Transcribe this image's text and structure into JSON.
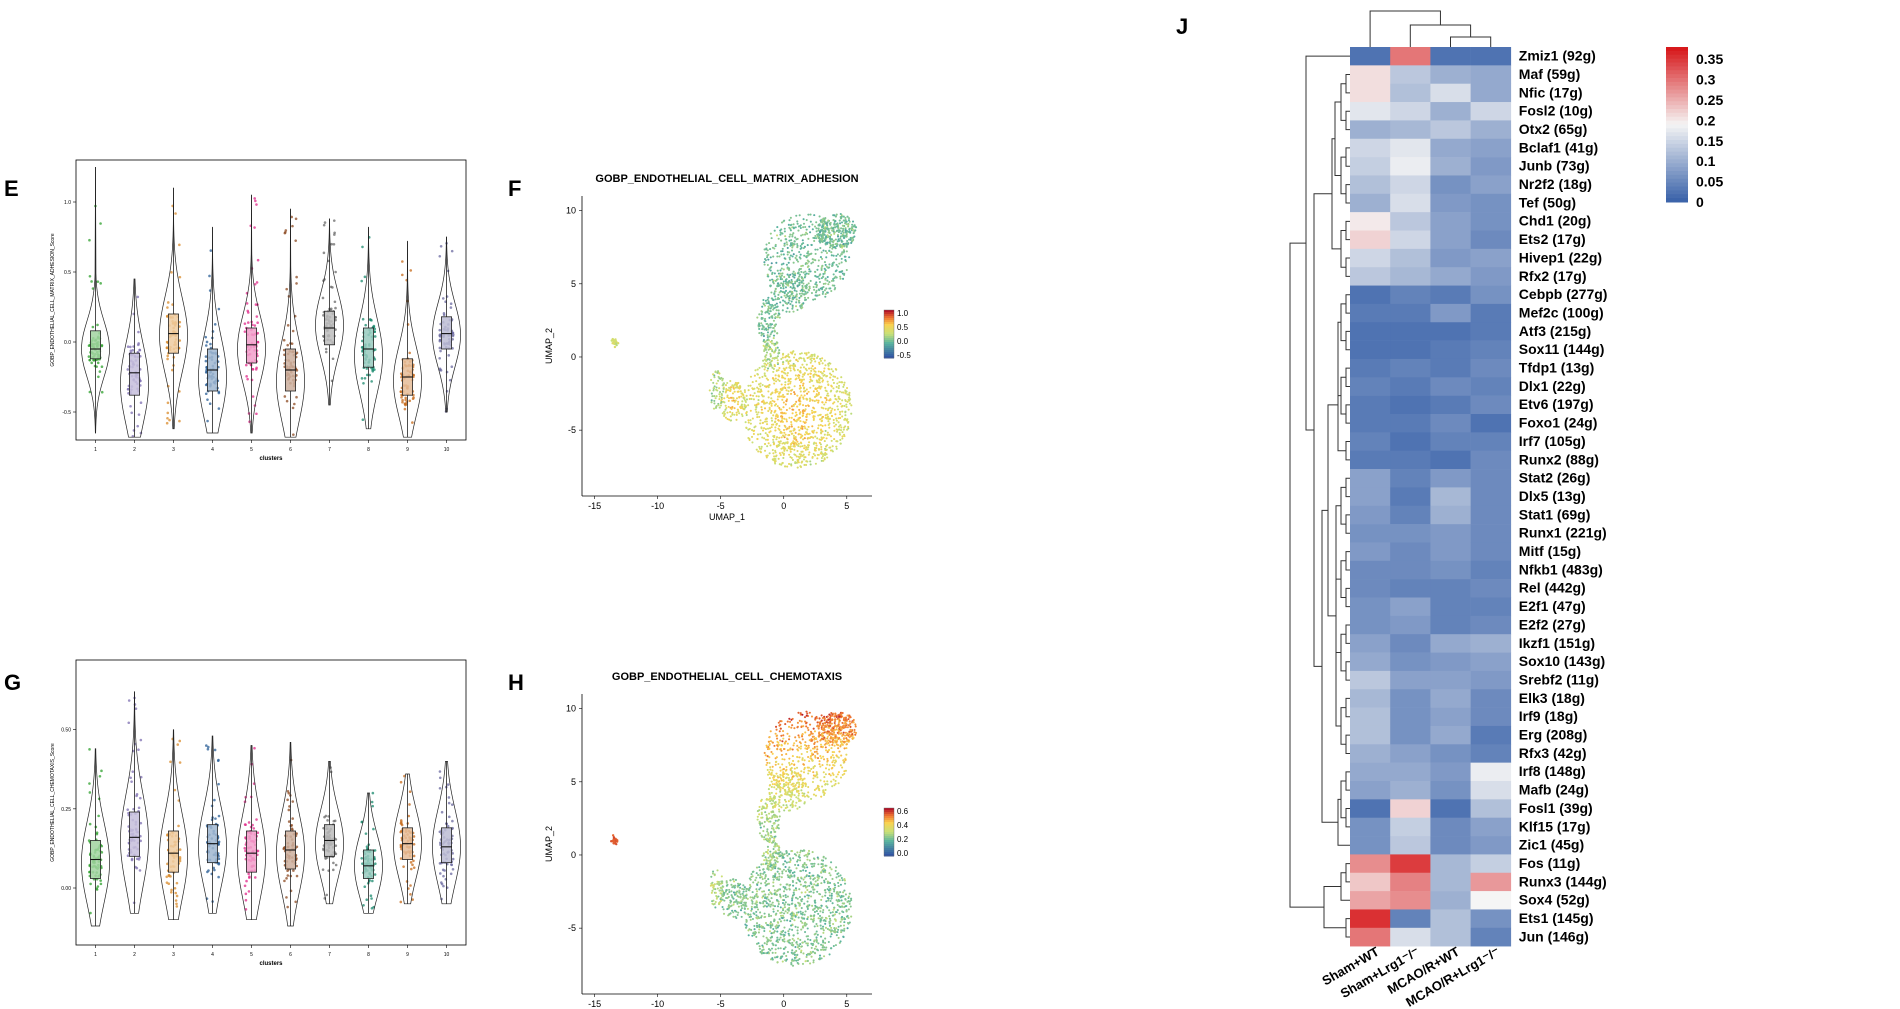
{
  "panel_labels": {
    "E": "E",
    "F": "F",
    "G": "G",
    "H": "H",
    "J": "J"
  },
  "colors": {
    "violins": [
      "#2ea02c",
      "#7d6fb2",
      "#d98b2b",
      "#2a5d96",
      "#e0298a",
      "#8c4a22",
      "#6a6a6a",
      "#1a8a6e",
      "#c56a1a",
      "#6b6aa0"
    ],
    "heat_low": "#3c64aa",
    "heat_mid": "#f5f5f5",
    "heat_high": "#d7191c"
  },
  "chart_data": [
    {
      "id": "E",
      "type": "violin",
      "ylabel": "GOBP_ENDOTHELIAL_CELL_MATRIX_ADHESION_Score",
      "xlabel": "clusters",
      "categories": [
        "1",
        "2",
        "3",
        "4",
        "5",
        "6",
        "7",
        "8",
        "9",
        "10"
      ],
      "ylim": [
        -0.7,
        1.3
      ],
      "yticks": [
        {
          "v": 1.0,
          "t": "1.0"
        },
        {
          "v": 0.5,
          "t": "0.5"
        },
        {
          "v": 0.0,
          "t": "0.0"
        },
        {
          "v": -0.5,
          "t": "-0.5"
        }
      ],
      "series": [
        {
          "min": -0.65,
          "max": 1.25,
          "q1": -0.12,
          "med": -0.05,
          "q3": 0.08,
          "mode": -0.05
        },
        {
          "min": -0.68,
          "max": 0.45,
          "q1": -0.38,
          "med": -0.22,
          "q3": -0.08,
          "mode": -0.3
        },
        {
          "min": -0.62,
          "max": 1.1,
          "q1": -0.08,
          "med": 0.06,
          "q3": 0.2,
          "mode": 0.05
        },
        {
          "min": -0.65,
          "max": 0.82,
          "q1": -0.35,
          "med": -0.2,
          "q3": -0.05,
          "mode": -0.25
        },
        {
          "min": -0.65,
          "max": 1.05,
          "q1": -0.15,
          "med": -0.02,
          "q3": 0.1,
          "mode": -0.05
        },
        {
          "min": -0.68,
          "max": 0.95,
          "q1": -0.35,
          "med": -0.2,
          "q3": -0.05,
          "mode": -0.28
        },
        {
          "min": -0.45,
          "max": 0.88,
          "q1": -0.02,
          "med": 0.1,
          "q3": 0.22,
          "mode": 0.12
        },
        {
          "min": -0.62,
          "max": 0.82,
          "q1": -0.18,
          "med": -0.05,
          "q3": 0.1,
          "mode": -0.1
        },
        {
          "min": -0.68,
          "max": 0.72,
          "q1": -0.38,
          "med": -0.25,
          "q3": -0.12,
          "mode": -0.28
        },
        {
          "min": -0.5,
          "max": 0.75,
          "q1": -0.05,
          "med": 0.06,
          "q3": 0.18,
          "mode": 0.05
        }
      ]
    },
    {
      "id": "F",
      "type": "scatter",
      "title": "GOBP_ENDOTHELIAL_CELL_MATRIX_ADHESION",
      "xlabel": "UMAP_1",
      "ylabel": "UMAP_2",
      "xlim": [
        -16,
        7
      ],
      "ylim": [
        -9.5,
        11
      ],
      "xticks": [
        -15,
        -10,
        -5,
        0,
        5
      ],
      "yticks": [
        10,
        5,
        0,
        -5
      ],
      "legend": {
        "ticks": [
          "1.0",
          "0.5",
          "0.0",
          "-0.5"
        ],
        "range": [
          -0.7,
          1.2
        ]
      },
      "hot_region": "lower"
    },
    {
      "id": "G",
      "type": "violin",
      "ylabel": "GOBP_ENDOTHELIAL_CELL_CHEMOTAXIS_Score",
      "xlabel": "clusters",
      "categories": [
        "1",
        "2",
        "3",
        "4",
        "5",
        "6",
        "7",
        "8",
        "9",
        "10"
      ],
      "ylim": [
        -0.18,
        0.72
      ],
      "yticks": [
        {
          "v": 0.5,
          "t": "0.50"
        },
        {
          "v": 0.25,
          "t": "0.25"
        },
        {
          "v": 0.0,
          "t": "0.00"
        }
      ],
      "series": [
        {
          "min": -0.12,
          "max": 0.44,
          "q1": 0.03,
          "med": 0.09,
          "q3": 0.15,
          "mode": 0.08
        },
        {
          "min": -0.08,
          "max": 0.62,
          "q1": 0.1,
          "med": 0.16,
          "q3": 0.24,
          "mode": 0.15
        },
        {
          "min": -0.1,
          "max": 0.5,
          "q1": 0.05,
          "med": 0.11,
          "q3": 0.18,
          "mode": 0.1
        },
        {
          "min": -0.08,
          "max": 0.48,
          "q1": 0.08,
          "med": 0.14,
          "q3": 0.2,
          "mode": 0.13
        },
        {
          "min": -0.1,
          "max": 0.45,
          "q1": 0.05,
          "med": 0.11,
          "q3": 0.18,
          "mode": 0.1
        },
        {
          "min": -0.12,
          "max": 0.46,
          "q1": 0.06,
          "med": 0.12,
          "q3": 0.18,
          "mode": 0.11
        },
        {
          "min": -0.05,
          "max": 0.4,
          "q1": 0.1,
          "med": 0.15,
          "q3": 0.2,
          "mode": 0.14
        },
        {
          "min": -0.08,
          "max": 0.3,
          "q1": 0.03,
          "med": 0.07,
          "q3": 0.12,
          "mode": 0.07
        },
        {
          "min": -0.05,
          "max": 0.36,
          "q1": 0.09,
          "med": 0.14,
          "q3": 0.19,
          "mode": 0.14
        },
        {
          "min": -0.05,
          "max": 0.4,
          "q1": 0.08,
          "med": 0.13,
          "q3": 0.19,
          "mode": 0.13
        }
      ]
    },
    {
      "id": "H",
      "type": "scatter",
      "title": "GOBP_ENDOTHELIAL_CELL_CHEMOTAXIS",
      "xlabel": "UMAP_1",
      "ylabel": "UMAP_2",
      "xlim": [
        -16,
        7
      ],
      "ylim": [
        -9.5,
        11
      ],
      "xticks": [
        -15,
        -10,
        -5,
        0,
        5
      ],
      "yticks": [
        10,
        5,
        0,
        -5
      ],
      "legend": {
        "ticks": [
          "0.6",
          "0.4",
          "0.2",
          "0.0"
        ],
        "range": [
          -0.1,
          0.65
        ]
      },
      "hot_region": "upper"
    },
    {
      "id": "J",
      "type": "heatmap",
      "columns": [
        "Sham+WT",
        "Sham+Lrg1⁻/⁻",
        "MCAO/R+WT",
        "MCAO/R+Lrg1⁻/⁻"
      ],
      "legend_ticks": [
        "0.35",
        "0.3",
        "0.25",
        "0.2",
        "0.15",
        "0.1",
        "0.05",
        "0"
      ],
      "legend_range": [
        0,
        0.38
      ],
      "rows": [
        {
          "gene": "Zmiz1 (92g)",
          "values": [
            0.02,
            0.3,
            0.02,
            0.02
          ]
        },
        {
          "gene": "Maf (59g)",
          "values": [
            0.21,
            0.13,
            0.1,
            0.09
          ]
        },
        {
          "gene": "Nfic (17g)",
          "values": [
            0.21,
            0.12,
            0.16,
            0.09
          ]
        },
        {
          "gene": "Fosl2 (10g)",
          "values": [
            0.17,
            0.15,
            0.1,
            0.15
          ]
        },
        {
          "gene": "Otx2 (65g)",
          "values": [
            0.1,
            0.11,
            0.13,
            0.1
          ]
        },
        {
          "gene": "Bclaf1 (41g)",
          "values": [
            0.15,
            0.17,
            0.09,
            0.08
          ]
        },
        {
          "gene": "Junb (73g)",
          "values": [
            0.14,
            0.18,
            0.1,
            0.07
          ]
        },
        {
          "gene": "Nr2f2 (18g)",
          "values": [
            0.12,
            0.15,
            0.06,
            0.08
          ]
        },
        {
          "gene": "Tef (50g)",
          "values": [
            0.1,
            0.16,
            0.07,
            0.06
          ]
        },
        {
          "gene": "Chd1 (20g)",
          "values": [
            0.2,
            0.13,
            0.08,
            0.06
          ]
        },
        {
          "gene": "Ets2 (17g)",
          "values": [
            0.22,
            0.15,
            0.08,
            0.05
          ]
        },
        {
          "gene": "Hivep1 (22g)",
          "values": [
            0.15,
            0.12,
            0.07,
            0.08
          ]
        },
        {
          "gene": "Rfx2 (17g)",
          "values": [
            0.13,
            0.11,
            0.09,
            0.07
          ]
        },
        {
          "gene": "Cebpb (277g)",
          "values": [
            0.02,
            0.04,
            0.03,
            0.06
          ]
        },
        {
          "gene": "Mef2c (100g)",
          "values": [
            0.03,
            0.03,
            0.07,
            0.03
          ]
        },
        {
          "gene": "Atf3 (215g)",
          "values": [
            0.02,
            0.02,
            0.02,
            0.03
          ]
        },
        {
          "gene": "Sox11 (144g)",
          "values": [
            0.02,
            0.02,
            0.03,
            0.04
          ]
        },
        {
          "gene": "Tfdp1 (13g)",
          "values": [
            0.03,
            0.04,
            0.03,
            0.05
          ]
        },
        {
          "gene": "Dlx1 (22g)",
          "values": [
            0.04,
            0.03,
            0.05,
            0.04
          ]
        },
        {
          "gene": "Etv6 (197g)",
          "values": [
            0.03,
            0.02,
            0.03,
            0.05
          ]
        },
        {
          "gene": "Foxo1 (24g)",
          "values": [
            0.03,
            0.03,
            0.05,
            0.02
          ]
        },
        {
          "gene": "Irf7 (105g)",
          "values": [
            0.04,
            0.02,
            0.04,
            0.04
          ]
        },
        {
          "gene": "Runx2 (88g)",
          "values": [
            0.03,
            0.03,
            0.02,
            0.05
          ]
        },
        {
          "gene": "Stat2 (26g)",
          "values": [
            0.08,
            0.04,
            0.07,
            0.05
          ]
        },
        {
          "gene": "Dlx5 (13g)",
          "values": [
            0.08,
            0.03,
            0.11,
            0.05
          ]
        },
        {
          "gene": "Stat1 (69g)",
          "values": [
            0.07,
            0.04,
            0.1,
            0.05
          ]
        },
        {
          "gene": "Runx1 (221g)",
          "values": [
            0.06,
            0.06,
            0.07,
            0.05
          ]
        },
        {
          "gene": "Mitf (15g)",
          "values": [
            0.07,
            0.05,
            0.07,
            0.05
          ]
        },
        {
          "gene": "Nfkb1 (483g)",
          "values": [
            0.05,
            0.05,
            0.06,
            0.04
          ]
        },
        {
          "gene": "Rel (442g)",
          "values": [
            0.05,
            0.04,
            0.04,
            0.05
          ]
        },
        {
          "gene": "E2f1 (47g)",
          "values": [
            0.06,
            0.08,
            0.04,
            0.04
          ]
        },
        {
          "gene": "E2f2 (27g)",
          "values": [
            0.06,
            0.07,
            0.04,
            0.05
          ]
        },
        {
          "gene": "Ikzf1 (151g)",
          "values": [
            0.08,
            0.05,
            0.09,
            0.1
          ]
        },
        {
          "gene": "Sox10 (143g)",
          "values": [
            0.09,
            0.06,
            0.07,
            0.08
          ]
        },
        {
          "gene": "Srebf2 (11g)",
          "values": [
            0.13,
            0.08,
            0.08,
            0.07
          ]
        },
        {
          "gene": "Elk3 (18g)",
          "values": [
            0.11,
            0.06,
            0.09,
            0.05
          ]
        },
        {
          "gene": "Irf9 (18g)",
          "values": [
            0.12,
            0.06,
            0.08,
            0.05
          ]
        },
        {
          "gene": "Erg (208g)",
          "values": [
            0.12,
            0.06,
            0.09,
            0.03
          ]
        },
        {
          "gene": "Rfx3 (42g)",
          "values": [
            0.1,
            0.08,
            0.06,
            0.04
          ]
        },
        {
          "gene": "Irf8 (148g)",
          "values": [
            0.09,
            0.09,
            0.07,
            0.18
          ]
        },
        {
          "gene": "Mafb (24g)",
          "values": [
            0.08,
            0.1,
            0.06,
            0.16
          ]
        },
        {
          "gene": "Fosl1 (39g)",
          "values": [
            0.02,
            0.22,
            0.02,
            0.12
          ]
        },
        {
          "gene": "Klf15 (17g)",
          "values": [
            0.06,
            0.14,
            0.05,
            0.08
          ]
        },
        {
          "gene": "Zic1 (45g)",
          "values": [
            0.06,
            0.13,
            0.05,
            0.07
          ]
        },
        {
          "gene": "Fos (11g)",
          "values": [
            0.28,
            0.35,
            0.11,
            0.14
          ]
        },
        {
          "gene": "Runx3 (144g)",
          "values": [
            0.23,
            0.29,
            0.11,
            0.27
          ]
        },
        {
          "gene": "Sox4 (52g)",
          "values": [
            0.26,
            0.28,
            0.1,
            0.19
          ]
        },
        {
          "gene": "Ets1 (145g)",
          "values": [
            0.36,
            0.04,
            0.12,
            0.06
          ]
        },
        {
          "gene": "Jun (146g)",
          "values": [
            0.3,
            0.16,
            0.12,
            0.04
          ]
        }
      ]
    }
  ]
}
